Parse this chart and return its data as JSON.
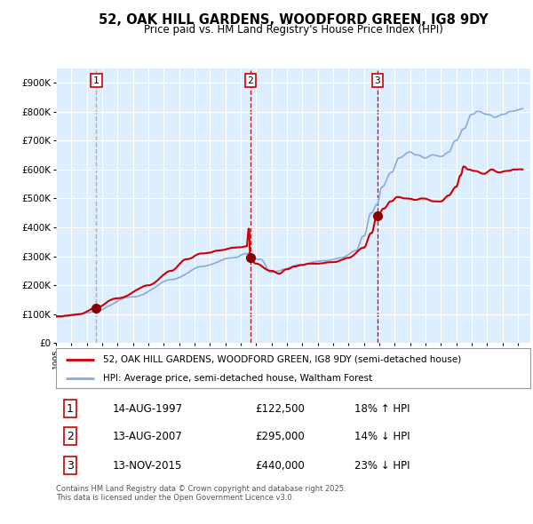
{
  "title": "52, OAK HILL GARDENS, WOODFORD GREEN, IG8 9DY",
  "subtitle": "Price paid vs. HM Land Registry's House Price Index (HPI)",
  "background_color": "#ffffff",
  "plot_bg_color": "#ddeeff",
  "grid_color": "#ffffff",
  "red_line_color": "#cc0000",
  "blue_line_color": "#88aadd",
  "sale_marker_color": "#880000",
  "ylim": [
    0,
    950000
  ],
  "ytick_labels": [
    "£0",
    "£100K",
    "£200K",
    "£300K",
    "£400K",
    "£500K",
    "£600K",
    "£700K",
    "£800K",
    "£900K"
  ],
  "ytick_values": [
    0,
    100000,
    200000,
    300000,
    400000,
    500000,
    600000,
    700000,
    800000,
    900000
  ],
  "sales": [
    {
      "date_num": 1997.62,
      "price": 122500,
      "label": "1",
      "vline_color": "#aaaaaa",
      "vline_style": "--"
    },
    {
      "date_num": 2007.62,
      "price": 295000,
      "label": "2",
      "vline_color": "#cc0000",
      "vline_style": "--"
    },
    {
      "date_num": 2015.87,
      "price": 440000,
      "label": "3",
      "vline_color": "#cc0000",
      "vline_style": "--"
    }
  ],
  "sale_annotations": [
    {
      "label": "1",
      "date": "14-AUG-1997",
      "price": "£122,500",
      "hpi_change": "18% ↑ HPI"
    },
    {
      "label": "2",
      "date": "13-AUG-2007",
      "price": "£295,000",
      "hpi_change": "14% ↓ HPI"
    },
    {
      "label": "3",
      "date": "13-NOV-2015",
      "price": "£440,000",
      "hpi_change": "23% ↓ HPI"
    }
  ],
  "legend_red": "52, OAK HILL GARDENS, WOODFORD GREEN, IG8 9DY (semi-detached house)",
  "legend_blue": "HPI: Average price, semi-detached house, Waltham Forest",
  "footer": "Contains HM Land Registry data © Crown copyright and database right 2025.\nThis data is licensed under the Open Government Licence v3.0.",
  "xmin": 1995.0,
  "xmax": 2025.8
}
